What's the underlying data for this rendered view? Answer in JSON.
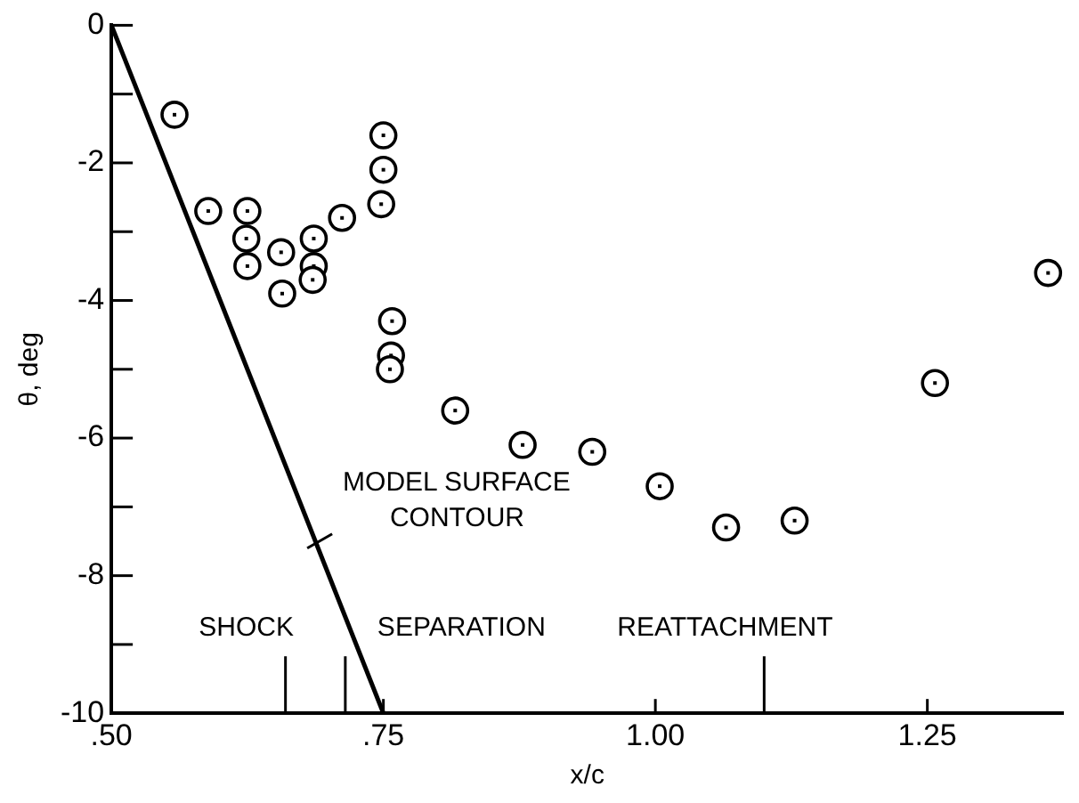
{
  "chart_data": {
    "type": "scatter",
    "xlabel": "x/c",
    "ylabel": "θ, deg",
    "xlim": [
      0.5,
      1.375
    ],
    "xticks": [
      {
        "value": 0.5,
        "label": ".50"
      },
      {
        "value": 0.75,
        "label": ".75"
      },
      {
        "value": 1.0,
        "label": "1.00"
      },
      {
        "value": 1.25,
        "label": "1.25"
      }
    ],
    "ylim": [
      -10,
      0
    ],
    "yticks": [
      0,
      {
        "value": -1,
        "label": null
      },
      -2,
      {
        "value": -3,
        "label": null
      },
      -4,
      {
        "value": -5,
        "label": null
      },
      -6,
      {
        "value": -7,
        "label": null
      },
      -8,
      {
        "value": -9,
        "label": null
      },
      -10
    ],
    "grid": false,
    "legend": false,
    "marker": "circle",
    "series": [
      {
        "color": "#000000",
        "x": [
          0.558,
          0.589,
          0.625,
          0.624,
          0.625,
          0.656,
          0.657,
          0.686,
          0.686,
          0.685,
          0.712,
          0.75,
          0.75,
          0.748,
          0.758,
          0.757,
          0.756,
          0.816,
          0.878,
          0.942,
          1.004,
          1.065,
          1.128,
          1.257,
          1.361
        ],
        "values": [
          -1.3,
          -2.7,
          -2.7,
          -3.1,
          -3.5,
          -3.3,
          -3.9,
          -3.1,
          -3.5,
          -3.7,
          -2.8,
          -1.6,
          -2.1,
          -2.6,
          -4.3,
          -4.8,
          -5.0,
          -5.6,
          -6.1,
          -6.2,
          -6.7,
          -7.3,
          -7.2,
          -5.2,
          -3.6
        ]
      },
      {
        "type": "line",
        "color": "#000000",
        "marker": "none",
        "x": [
          0.5,
          0.75
        ],
        "values": [
          0,
          -10
        ]
      }
    ],
    "ref_lines": [
      {
        "axis": "x",
        "value": 0.66,
        "label": "SHOCK"
      },
      {
        "axis": "x",
        "value": 0.715,
        "label": "SEPARATION"
      },
      {
        "axis": "x",
        "value": 1.1,
        "label": "REATTACHMENT"
      }
    ],
    "annotations": [
      {
        "text": "MODEL SURFACE\nCONTOUR",
        "x": 0.68,
        "y": -7.6
      }
    ]
  }
}
